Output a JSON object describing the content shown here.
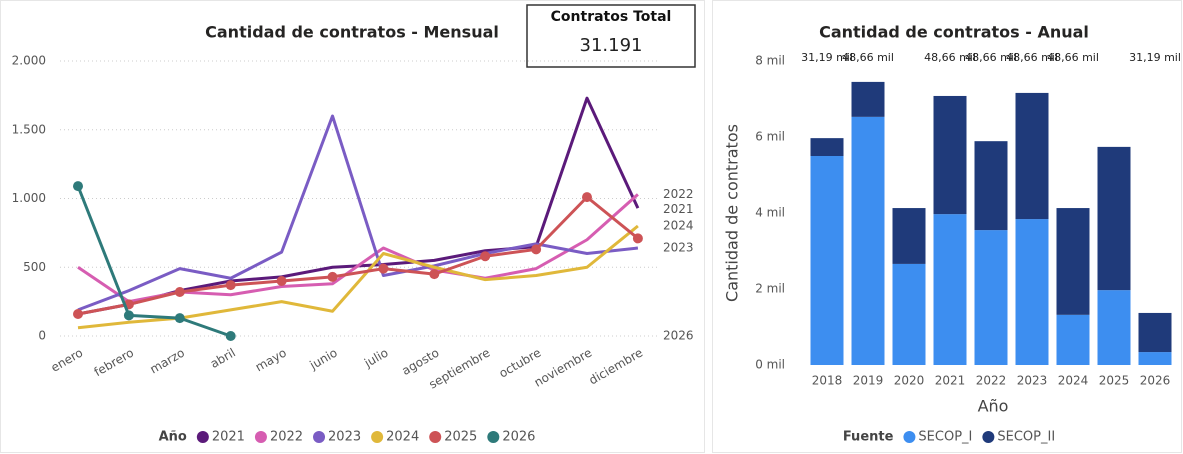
{
  "card": {
    "title": "Contratos Total",
    "value": "31.191"
  },
  "chart_data": [
    {
      "type": "line",
      "title": "Cantidad de contratos - Mensual",
      "categories": [
        "enero",
        "febrero",
        "marzo",
        "abril",
        "mayo",
        "junio",
        "julio",
        "agosto",
        "septiembre",
        "octubre",
        "noviembre",
        "diciembre"
      ],
      "ylim": [
        0,
        2000
      ],
      "yticks": [
        0,
        500,
        {
          "value": 1000,
          "label": "1.000"
        },
        {
          "value": 1500,
          "label": "1.500"
        },
        {
          "value": 2000,
          "label": "2.000"
        }
      ],
      "grid": true,
      "legend_title": "Año",
      "legend": "bottom",
      "series": [
        {
          "name": "2021",
          "color": "#5b1a7a",
          "end_label": "2021",
          "values": [
            160,
            230,
            330,
            400,
            430,
            500,
            520,
            550,
            620,
            650,
            1730,
            930
          ]
        },
        {
          "name": "2022",
          "color": "#d65db1",
          "end_label": "2022",
          "values": [
            500,
            250,
            320,
            300,
            360,
            380,
            640,
            480,
            420,
            490,
            700,
            1030
          ]
        },
        {
          "name": "2023",
          "color": "#7a5cc4",
          "end_label": "2023",
          "values": [
            190,
            330,
            490,
            420,
            610,
            1600,
            440,
            510,
            600,
            670,
            600,
            640
          ]
        },
        {
          "name": "2024",
          "color": "#e0b83a",
          "end_label": "2024",
          "values": [
            60,
            100,
            130,
            190,
            250,
            180,
            600,
            500,
            410,
            440,
            500,
            800
          ]
        },
        {
          "name": "2025",
          "color": "#cd5356",
          "markers": true,
          "values": [
            160,
            230,
            320,
            370,
            400,
            430,
            490,
            450,
            580,
            630,
            1010,
            710
          ]
        },
        {
          "name": "2026",
          "color": "#2e7a7a",
          "markers": true,
          "end_label": "2026",
          "values": [
            1090,
            150,
            130,
            0,
            null,
            null,
            null,
            null,
            null,
            null,
            null,
            null
          ]
        }
      ]
    },
    {
      "type": "stacked_bar",
      "title": "Cantidad de contratos - Anual",
      "x_label": "Año",
      "y_label": "Cantidad de contratos",
      "categories": [
        "2018",
        "2019",
        "2020",
        "2021",
        "2022",
        "2023",
        "2024",
        "2025",
        "2026"
      ],
      "ylim": [
        0,
        8000
      ],
      "yticks": [
        {
          "value": 0,
          "label": "0 mil"
        },
        {
          "value": 2000,
          "label": "2 mil"
        },
        {
          "value": 4000,
          "label": "4 mil"
        },
        {
          "value": 6000,
          "label": "6 mil"
        },
        {
          "value": 8000,
          "label": "8 mil"
        }
      ],
      "annotations": [
        "31,19 mil",
        "48,66 mil",
        null,
        "48,66 mil",
        "48,66 mil",
        "48,66 mil",
        "48,66 mil",
        null,
        "31,19 mil"
      ],
      "legend_title": "Fuente",
      "legend": "bottom",
      "series": [
        {
          "name": "SECOP_I",
          "color": "#3d8ef0",
          "values": [
            5500,
            6530,
            2660,
            3970,
            3550,
            3840,
            1320,
            1970,
            340
          ]
        },
        {
          "name": "SECOP_II",
          "color": "#1f3a7a",
          "values": [
            470,
            920,
            1470,
            3110,
            2340,
            3320,
            2810,
            3770,
            1030
          ]
        }
      ]
    }
  ]
}
